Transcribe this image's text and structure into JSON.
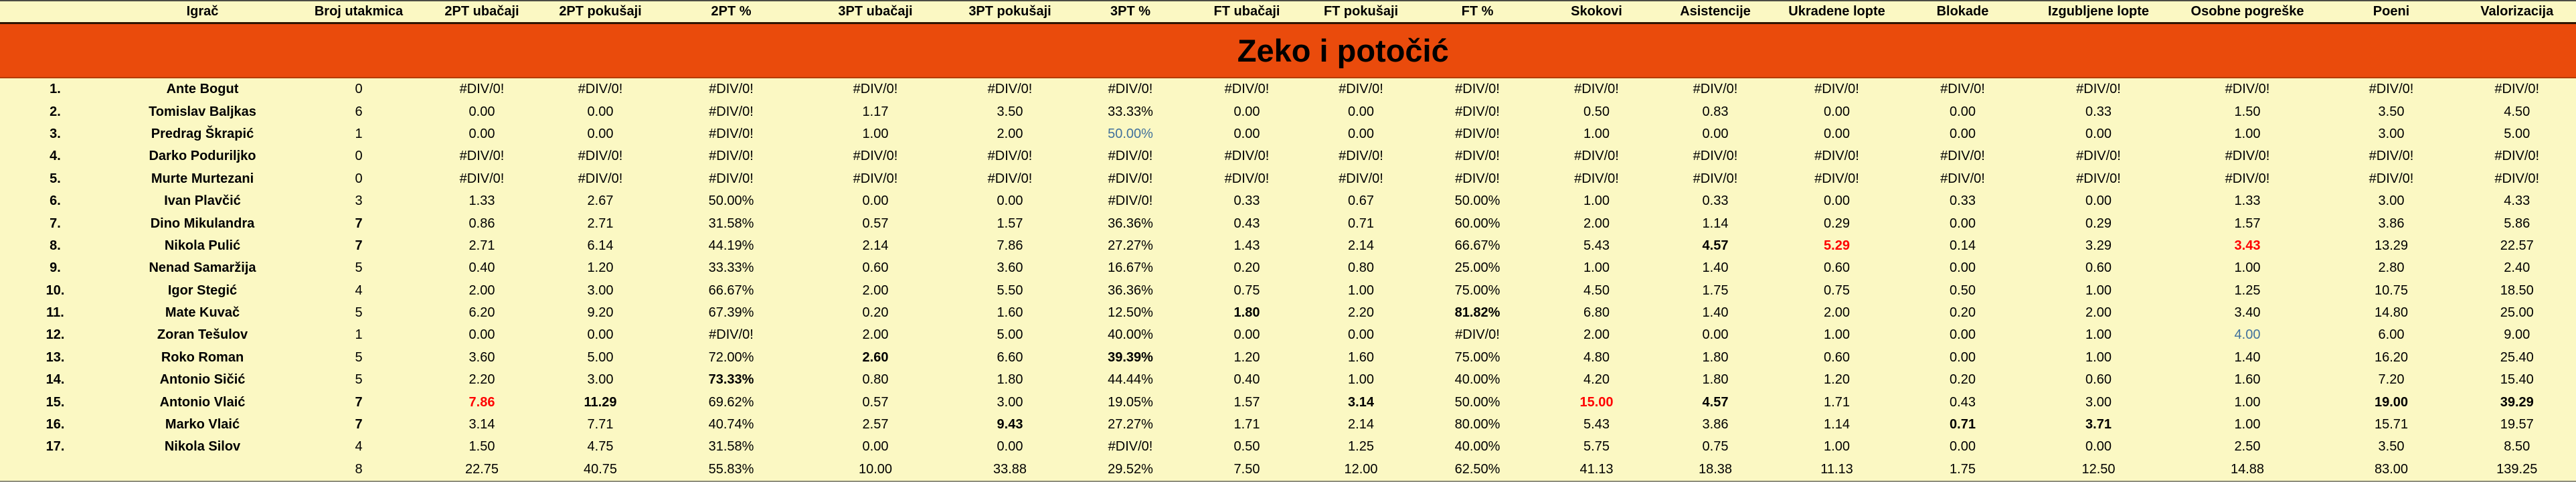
{
  "banner": {
    "title": "Zeko i potočić"
  },
  "colors": {
    "sheet_background": "#FBF8C3",
    "banner_background": "#EA4B0C",
    "banner_text": "#000000",
    "default_text": "#000000",
    "highlight_red": "#FF0000",
    "highlight_blue": "#41719C"
  },
  "columns": [
    "Igrač",
    "Broj utakmica",
    "2PT ubačaji",
    "2PT pokušaji",
    "2PT %",
    "3PT ubačaji",
    "3PT pokušaji",
    "3PT %",
    "FT ubačaji",
    "FT pokušaji",
    "FT %",
    "Skokovi",
    "Asistencije",
    "Ukradene lopte",
    "Blokade",
    "Izgubljene lopte",
    "Osobne pogreške",
    "Poeni",
    "Valorizacija"
  ],
  "rows": [
    {
      "num": "1.",
      "name": "Ante Bogut",
      "cells": [
        "0",
        "#DIV/0!",
        "#DIV/0!",
        "#DIV/0!",
        "#DIV/0!",
        "#DIV/0!",
        "#DIV/0!",
        "#DIV/0!",
        "#DIV/0!",
        "#DIV/0!",
        "#DIV/0!",
        "#DIV/0!",
        "#DIV/0!",
        "#DIV/0!",
        "#DIV/0!",
        "#DIV/0!",
        "#DIV/0!",
        "#DIV/0!"
      ]
    },
    {
      "num": "2.",
      "name": "Tomislav Baljkas",
      "cells": [
        "6",
        "0.00",
        "0.00",
        "#DIV/0!",
        "1.17",
        "3.50",
        "33.33%",
        "0.00",
        "0.00",
        "#DIV/0!",
        "0.50",
        "0.83",
        "0.00",
        "0.00",
        "0.33",
        "1.50",
        "3.50",
        "4.50"
      ]
    },
    {
      "num": "3.",
      "name": "Predrag Škrapić",
      "cells": [
        "1",
        "0.00",
        "0.00",
        "#DIV/0!",
        "1.00",
        "2.00",
        "50.00%|u",
        "0.00",
        "0.00",
        "#DIV/0!",
        "1.00",
        "0.00",
        "0.00",
        "0.00",
        "0.00",
        "1.00",
        "3.00",
        "5.00"
      ]
    },
    {
      "num": "4.",
      "name": "Darko Poduriljko",
      "cells": [
        "0",
        "#DIV/0!",
        "#DIV/0!",
        "#DIV/0!",
        "#DIV/0!",
        "#DIV/0!",
        "#DIV/0!",
        "#DIV/0!",
        "#DIV/0!",
        "#DIV/0!",
        "#DIV/0!",
        "#DIV/0!",
        "#DIV/0!",
        "#DIV/0!",
        "#DIV/0!",
        "#DIV/0!",
        "#DIV/0!",
        "#DIV/0!"
      ]
    },
    {
      "num": "5.",
      "name": "Murte Murtezani",
      "cells": [
        "0",
        "#DIV/0!",
        "#DIV/0!",
        "#DIV/0!",
        "#DIV/0!",
        "#DIV/0!",
        "#DIV/0!",
        "#DIV/0!",
        "#DIV/0!",
        "#DIV/0!",
        "#DIV/0!",
        "#DIV/0!",
        "#DIV/0!",
        "#DIV/0!",
        "#DIV/0!",
        "#DIV/0!",
        "#DIV/0!",
        "#DIV/0!"
      ]
    },
    {
      "num": "6.",
      "name": "Ivan Plavčić",
      "cells": [
        "3",
        "1.33",
        "2.67",
        "50.00%",
        "0.00",
        "0.00",
        "#DIV/0!",
        "0.33",
        "0.67",
        "50.00%",
        "1.00",
        "0.33",
        "0.00",
        "0.33",
        "0.00",
        "1.33",
        "3.00",
        "4.33"
      ]
    },
    {
      "num": "7.",
      "name": "Dino Mikulandra",
      "cells": [
        "7|b",
        "0.86",
        "2.71",
        "31.58%",
        "0.57",
        "1.57",
        "36.36%",
        "0.43",
        "0.71",
        "60.00%",
        "2.00",
        "1.14",
        "0.29",
        "0.00",
        "0.29",
        "1.57",
        "3.86",
        "5.86"
      ]
    },
    {
      "num": "8.",
      "name": "Nikola Pulić",
      "cells": [
        "7|b",
        "2.71",
        "6.14",
        "44.19%",
        "2.14",
        "7.86",
        "27.27%",
        "1.43",
        "2.14",
        "66.67%",
        "5.43",
        "4.57|b",
        "5.29|r",
        "0.14",
        "3.29",
        "3.43|r",
        "13.29",
        "22.57"
      ]
    },
    {
      "num": "9.",
      "name": "Nenad Samaržija",
      "cells": [
        "5",
        "0.40",
        "1.20",
        "33.33%",
        "0.60",
        "3.60",
        "16.67%",
        "0.20",
        "0.80",
        "25.00%",
        "1.00",
        "1.40",
        "0.60",
        "0.00",
        "0.60",
        "1.00",
        "2.80",
        "2.40"
      ]
    },
    {
      "num": "10.",
      "name": "Igor Stegić",
      "cells": [
        "4",
        "2.00",
        "3.00",
        "66.67%",
        "2.00",
        "5.50",
        "36.36%",
        "0.75",
        "1.00",
        "75.00%",
        "4.50",
        "1.75",
        "0.75",
        "0.50",
        "1.00",
        "1.25",
        "10.75",
        "18.50"
      ]
    },
    {
      "num": "11.",
      "name": "Mate Kuvač",
      "cells": [
        "5",
        "6.20",
        "9.20",
        "67.39%",
        "0.20",
        "1.60",
        "12.50%",
        "1.80|b",
        "2.20",
        "81.82%|b",
        "6.80",
        "1.40",
        "2.00",
        "0.20",
        "2.00",
        "3.40",
        "14.80",
        "25.00"
      ]
    },
    {
      "num": "12.",
      "name": "Zoran Tešulov",
      "cells": [
        "1",
        "0.00",
        "0.00",
        "#DIV/0!",
        "2.00",
        "5.00",
        "40.00%",
        "0.00",
        "0.00",
        "#DIV/0!",
        "2.00",
        "0.00",
        "1.00",
        "0.00",
        "1.00",
        "4.00|u",
        "6.00",
        "9.00"
      ]
    },
    {
      "num": "13.",
      "name": "Roko Roman",
      "cells": [
        "5",
        "3.60",
        "5.00",
        "72.00%",
        "2.60|b",
        "6.60",
        "39.39%|b",
        "1.20",
        "1.60",
        "75.00%",
        "4.80",
        "1.80",
        "0.60",
        "0.00",
        "1.00",
        "1.40",
        "16.20",
        "25.40"
      ]
    },
    {
      "num": "14.",
      "name": "Antonio Sičić",
      "cells": [
        "5",
        "2.20",
        "3.00",
        "73.33%|b",
        "0.80",
        "1.80",
        "44.44%",
        "0.40",
        "1.00",
        "40.00%",
        "4.20",
        "1.80",
        "1.20",
        "0.20",
        "0.60",
        "1.60",
        "7.20",
        "15.40"
      ]
    },
    {
      "num": "15.",
      "name": "Antonio Vlaić",
      "cells": [
        "7|b",
        "7.86|r",
        "11.29|b",
        "69.62%",
        "0.57",
        "3.00",
        "19.05%",
        "1.57",
        "3.14|b",
        "50.00%",
        "15.00|r",
        "4.57|b",
        "1.71",
        "0.43",
        "3.00",
        "1.00",
        "19.00|b",
        "39.29|b"
      ]
    },
    {
      "num": "16.",
      "name": "Marko Vlaić",
      "cells": [
        "7|b",
        "3.14",
        "7.71",
        "40.74%",
        "2.57",
        "9.43|b",
        "27.27%",
        "1.71",
        "2.14",
        "80.00%",
        "5.43",
        "3.86",
        "1.14",
        "0.71|b",
        "3.71|b",
        "1.00",
        "15.71",
        "19.57"
      ]
    },
    {
      "num": "17.",
      "name": "Nikola Silov",
      "cells": [
        "4",
        "1.50",
        "4.75",
        "31.58%",
        "0.00",
        "0.00",
        "#DIV/0!",
        "0.50",
        "1.25",
        "40.00%",
        "5.75",
        "0.75",
        "1.00",
        "0.00",
        "0.00",
        "2.50",
        "3.50",
        "8.50"
      ]
    }
  ],
  "total_row": {
    "num": "",
    "name": "",
    "cells": [
      "8",
      "22.75",
      "40.75",
      "55.83%",
      "10.00",
      "33.88",
      "29.52%",
      "7.50",
      "12.00",
      "62.50%",
      "41.13",
      "18.38",
      "11.13",
      "1.75",
      "12.50",
      "14.88",
      "83.00",
      "139.25"
    ]
  }
}
